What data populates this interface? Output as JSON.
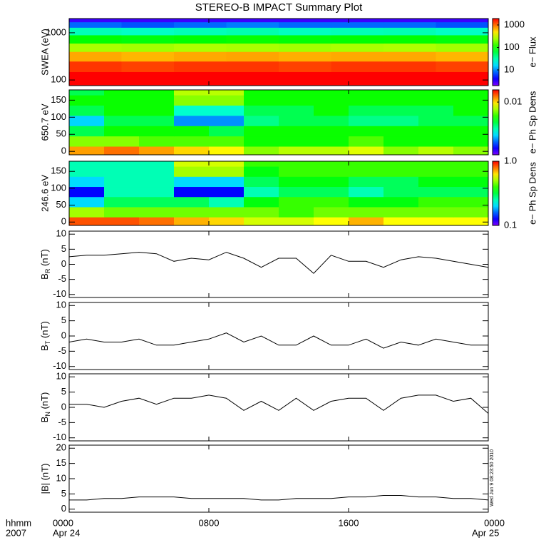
{
  "title": "STEREO-B IMPACT Summary Plot",
  "x_unit_label": "hhmm",
  "year_label": "2007",
  "date_start": "Apr 24",
  "date_end": "Apr 25",
  "timestamp": "Wed Jun 9 08:23:50 2010",
  "chart_data": [
    {
      "type": "heatmap",
      "ylabel": "SWEA (eV)",
      "log_y": true,
      "xlim": [
        0,
        24
      ],
      "xticks": [
        0,
        8,
        16,
        24
      ],
      "ylim": [
        76,
        2000
      ],
      "yticks": [
        100,
        1000
      ],
      "xbins": [
        0,
        3,
        6,
        9,
        12,
        15,
        18,
        21,
        24
      ],
      "ybins": [
        76,
        100,
        150,
        250,
        400,
        600,
        900,
        1300,
        1700,
        2000
      ],
      "values": [
        [
          2500,
          2400,
          2600,
          2500,
          2400,
          2500,
          2600,
          2400
        ],
        [
          2200,
          2100,
          2200,
          2300,
          2100,
          2200,
          2200,
          2100
        ],
        [
          1400,
          1300,
          1400,
          1400,
          1300,
          1400,
          1400,
          1300
        ],
        [
          700,
          650,
          700,
          720,
          680,
          700,
          700,
          650
        ],
        [
          250,
          240,
          260,
          250,
          240,
          250,
          260,
          240
        ],
        [
          90,
          85,
          90,
          95,
          88,
          90,
          92,
          85
        ],
        [
          30,
          28,
          30,
          32,
          29,
          30,
          31,
          28
        ],
        [
          8,
          7,
          8,
          9,
          8,
          8,
          8,
          7
        ],
        [
          3,
          3,
          3,
          3,
          3,
          3,
          3,
          3
        ]
      ],
      "zlim": [
        2,
        1930
      ],
      "zticks": [
        10,
        100,
        1000
      ],
      "zlabel": "e− Flux"
    },
    {
      "type": "heatmap",
      "ylabel": "650.7 eV",
      "log_y": false,
      "xlim": [
        0,
        24
      ],
      "xticks": [
        0,
        8,
        16,
        24
      ],
      "ylim": [
        -10,
        180
      ],
      "yticks": [
        0,
        50,
        100,
        150
      ],
      "xbins": [
        0,
        2,
        4,
        6,
        8,
        10,
        12,
        14,
        16,
        18,
        20,
        22,
        24
      ],
      "ybins": [
        -15,
        15,
        45,
        75,
        105,
        135,
        165,
        195
      ],
      "values": [
        [
          0.012,
          0.014,
          0.012,
          0.01,
          0.009,
          0.006,
          0.007,
          0.007,
          0.008,
          0.006,
          0.007,
          0.006
        ],
        [
          0.006,
          0.006,
          0.005,
          0.005,
          0.005,
          0.004,
          0.004,
          0.004,
          0.005,
          0.004,
          0.004,
          0.004
        ],
        [
          0.003,
          0.004,
          0.004,
          0.004,
          0.003,
          0.004,
          0.004,
          0.004,
          0.004,
          0.004,
          0.004,
          0.004
        ],
        [
          0.0015,
          0.003,
          0.003,
          0.0012,
          0.0012,
          0.0025,
          0.003,
          0.003,
          0.0025,
          0.0025,
          0.003,
          0.003
        ],
        [
          0.003,
          0.004,
          0.004,
          0.002,
          0.002,
          0.003,
          0.003,
          0.004,
          0.003,
          0.003,
          0.003,
          0.004
        ],
        [
          0.004,
          0.004,
          0.004,
          0.006,
          0.006,
          0.004,
          0.004,
          0.004,
          0.004,
          0.004,
          0.004,
          0.004
        ],
        [
          0.003,
          0.004,
          0.004,
          0.007,
          0.007,
          0.004,
          0.004,
          0.004,
          0.004,
          0.004,
          0.004,
          0.004
        ]
      ],
      "zlim": [
        0.0005,
        0.02
      ],
      "zticks": [
        0.01
      ],
      "zlabel": "e− Ph Sp Dens"
    },
    {
      "type": "heatmap",
      "ylabel": "246.6 eV",
      "log_y": false,
      "xlim": [
        0,
        24
      ],
      "xticks": [
        0,
        8,
        16,
        24
      ],
      "ylim": [
        -10,
        180
      ],
      "yticks": [
        0,
        50,
        100,
        150
      ],
      "xbins": [
        0,
        2,
        4,
        6,
        8,
        10,
        12,
        14,
        16,
        18,
        20,
        22,
        24
      ],
      "ybins": [
        -15,
        15,
        45,
        75,
        105,
        135,
        165,
        195
      ],
      "values": [
        [
          0.85,
          0.85,
          0.8,
          0.7,
          0.65,
          0.55,
          0.55,
          0.6,
          0.7,
          0.6,
          0.6,
          0.6
        ],
        [
          0.5,
          0.45,
          0.45,
          0.45,
          0.45,
          0.45,
          0.4,
          0.45,
          0.45,
          0.45,
          0.45,
          0.45
        ],
        [
          0.2,
          0.3,
          0.3,
          0.3,
          0.25,
          0.35,
          0.4,
          0.4,
          0.35,
          0.35,
          0.4,
          0.4
        ],
        [
          0.13,
          0.25,
          0.25,
          0.13,
          0.13,
          0.25,
          0.3,
          0.3,
          0.25,
          0.3,
          0.3,
          0.3
        ],
        [
          0.2,
          0.25,
          0.25,
          0.2,
          0.2,
          0.3,
          0.35,
          0.35,
          0.3,
          0.3,
          0.35,
          0.35
        ],
        [
          0.25,
          0.25,
          0.25,
          0.5,
          0.5,
          0.35,
          0.4,
          0.4,
          0.4,
          0.4,
          0.4,
          0.4
        ],
        [
          0.25,
          0.25,
          0.25,
          0.55,
          0.55,
          0.4,
          0.4,
          0.4,
          0.4,
          0.4,
          0.4,
          0.4
        ]
      ],
      "zlim": [
        0.1,
        1.0
      ],
      "zticks": [
        {
          "value": 1,
          "label": "1.0"
        },
        0.1
      ],
      "zlabel": "e− Ph Sp Dens"
    },
    {
      "type": "line",
      "ylabel": {
        "text": "B",
        "sub": "R",
        "unit": " (nT)"
      },
      "color": "#000000",
      "xlim": [
        0,
        24
      ],
      "xticks": [
        0,
        8,
        16,
        24
      ],
      "ylim": [
        -11,
        11
      ],
      "yticks": [
        -10,
        -5,
        0,
        5,
        10
      ],
      "x": [
        0,
        1,
        2,
        3,
        4,
        5,
        6,
        7,
        8,
        9,
        10,
        11,
        12,
        13,
        14,
        15,
        16,
        17,
        18,
        19,
        20,
        21,
        22,
        23,
        24
      ],
      "values": [
        2.5,
        3,
        3,
        3.5,
        4,
        3.5,
        1,
        2,
        1.5,
        4,
        2,
        -1,
        2,
        2,
        -3,
        3,
        1,
        1,
        -1,
        1.5,
        2.5,
        2,
        1,
        0,
        -1
      ]
    },
    {
      "type": "line",
      "ylabel": {
        "text": "B",
        "sub": "T",
        "unit": " (nT)"
      },
      "color": "#000000",
      "xlim": [
        0,
        24
      ],
      "xticks": [
        0,
        8,
        16,
        24
      ],
      "ylim": [
        -11,
        11
      ],
      "yticks": [
        -10,
        -5,
        0,
        5,
        10
      ],
      "x": [
        0,
        1,
        2,
        3,
        4,
        5,
        6,
        7,
        8,
        9,
        10,
        11,
        12,
        13,
        14,
        15,
        16,
        17,
        18,
        19,
        20,
        21,
        22,
        23,
        24
      ],
      "values": [
        -2,
        -1,
        -2,
        -2,
        -1,
        -3,
        -3,
        -2,
        -1,
        1,
        -2,
        0,
        -3,
        -3,
        0,
        -3,
        -3,
        -1,
        -4,
        -2,
        -3,
        -1,
        -2,
        -3,
        -3
      ]
    },
    {
      "type": "line",
      "ylabel": {
        "text": "B",
        "sub": "N",
        "unit": " (nT)"
      },
      "color": "#000000",
      "xlim": [
        0,
        24
      ],
      "xticks": [
        0,
        8,
        16,
        24
      ],
      "ylim": [
        -11,
        11
      ],
      "yticks": [
        -10,
        -5,
        0,
        5,
        10
      ],
      "x": [
        0,
        1,
        2,
        3,
        4,
        5,
        6,
        7,
        8,
        9,
        10,
        11,
        12,
        13,
        14,
        15,
        16,
        17,
        18,
        19,
        20,
        21,
        22,
        23,
        24
      ],
      "values": [
        1,
        1,
        0,
        2,
        3,
        1,
        3,
        3,
        4,
        3,
        -1,
        2,
        -1,
        3,
        -1,
        2,
        3,
        3,
        -1,
        3,
        4,
        4,
        2,
        3,
        -2
      ]
    },
    {
      "type": "line",
      "ylabel": "|B| (nT)",
      "color": "#000000",
      "xlim": [
        0,
        24
      ],
      "xticks": [
        {
          "value": 0,
          "label": "0000"
        },
        {
          "value": 8,
          "label": "0800"
        },
        {
          "value": 16,
          "label": "1600"
        },
        {
          "value": 24,
          "label": "0000"
        }
      ],
      "ylim": [
        -1,
        21
      ],
      "yticks": [
        0,
        5,
        10,
        15,
        20
      ],
      "x": [
        0,
        1,
        2,
        3,
        4,
        5,
        6,
        7,
        8,
        9,
        10,
        11,
        12,
        13,
        14,
        15,
        16,
        17,
        18,
        19,
        20,
        21,
        22,
        23,
        24
      ],
      "values": [
        3,
        3,
        3.5,
        3.5,
        4,
        4,
        4,
        3.5,
        3.5,
        3.5,
        3.5,
        3,
        3,
        3.5,
        3.5,
        3.5,
        4,
        4,
        4.5,
        4.5,
        4,
        4,
        3.5,
        3.5,
        3
      ]
    }
  ]
}
